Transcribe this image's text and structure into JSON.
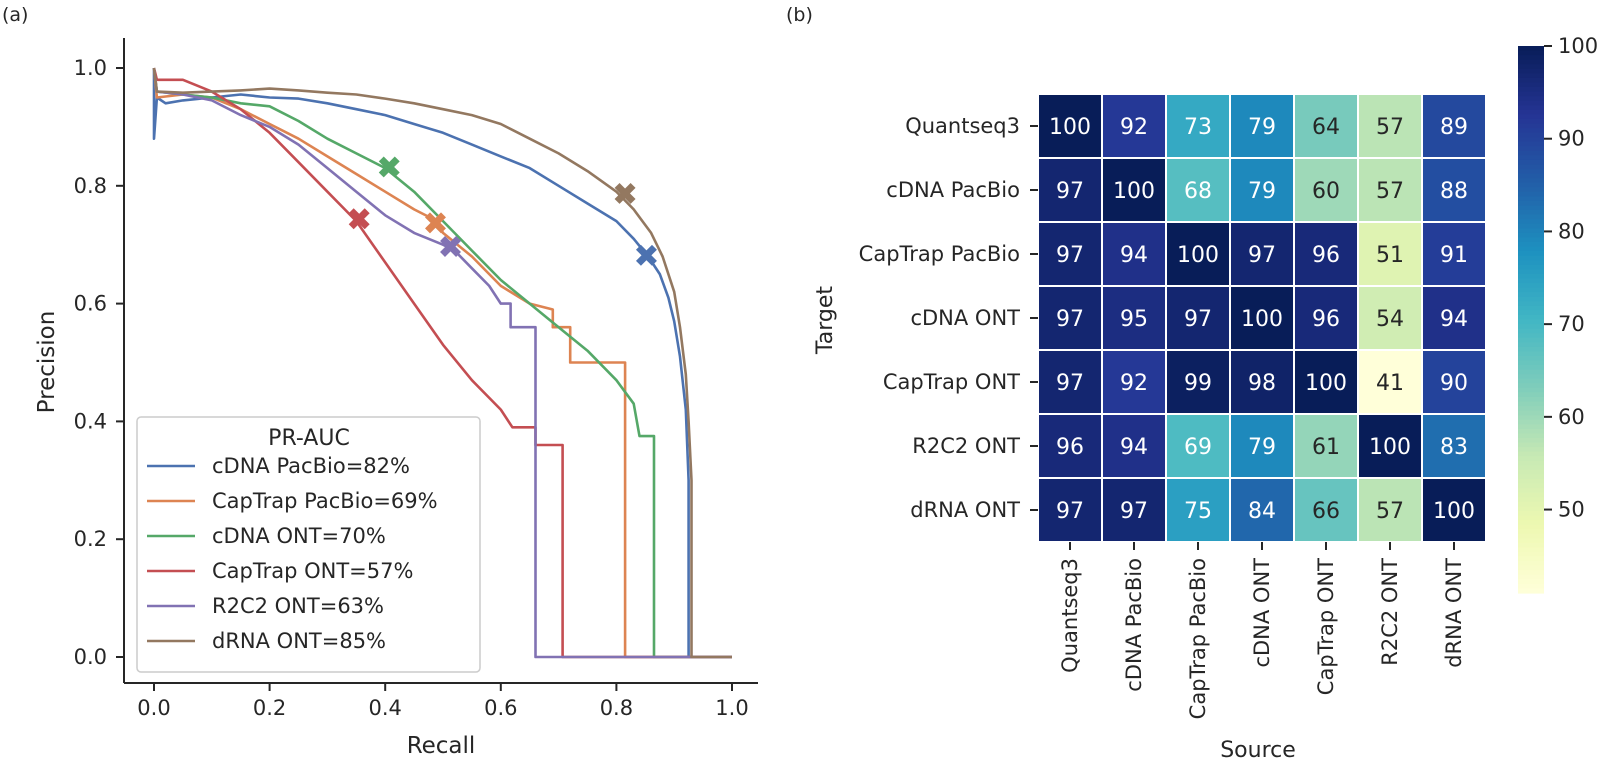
{
  "panels": {
    "a_label": "(a)",
    "b_label": "(b)"
  },
  "chart_data": [
    {
      "type": "line",
      "panel": "(a)",
      "xlabel": "Recall",
      "ylabel": "Precision",
      "xlim": [
        -0.05,
        1.05
      ],
      "ylim": [
        -0.05,
        1.05
      ],
      "xticks": [
        "0.0",
        "0.2",
        "0.4",
        "0.6",
        "0.8",
        "1.0"
      ],
      "yticks": [
        "0.0",
        "0.2",
        "0.4",
        "0.6",
        "0.8",
        "1.0"
      ],
      "legend": {
        "title": "PR-AUC",
        "placement": "lower-left"
      },
      "grid": false,
      "series": [
        {
          "name": "cDNA PacBio=82%",
          "color": "#4c72b0",
          "x": [
            0.0,
            0.0,
            0.005,
            0.02,
            0.05,
            0.1,
            0.15,
            0.2,
            0.25,
            0.3,
            0.35,
            0.4,
            0.45,
            0.5,
            0.55,
            0.6,
            0.65,
            0.7,
            0.75,
            0.8,
            0.83,
            0.855,
            0.875,
            0.89,
            0.9,
            0.91,
            0.92,
            0.925,
            0.925,
            1.0
          ],
          "y": [
            1.0,
            0.88,
            0.95,
            0.94,
            0.945,
            0.95,
            0.955,
            0.95,
            0.948,
            0.94,
            0.93,
            0.92,
            0.905,
            0.89,
            0.87,
            0.85,
            0.83,
            0.8,
            0.77,
            0.74,
            0.71,
            0.68,
            0.65,
            0.61,
            0.57,
            0.51,
            0.42,
            0.3,
            0.0,
            0.0
          ],
          "marker": {
            "x": 0.852,
            "y": 0.682
          }
        },
        {
          "name": "CapTrap PacBio=69%",
          "color": "#dd8452",
          "x": [
            0.0,
            0.005,
            0.05,
            0.1,
            0.15,
            0.2,
            0.25,
            0.3,
            0.35,
            0.4,
            0.45,
            0.49,
            0.5,
            0.55,
            0.6,
            0.65,
            0.69,
            0.69,
            0.72,
            0.72,
            0.77,
            0.77,
            0.815,
            0.815,
            0.815,
            1.0
          ],
          "y": [
            1.0,
            0.95,
            0.955,
            0.95,
            0.93,
            0.905,
            0.88,
            0.85,
            0.82,
            0.79,
            0.76,
            0.74,
            0.72,
            0.68,
            0.63,
            0.6,
            0.59,
            0.56,
            0.56,
            0.5,
            0.5,
            0.5,
            0.5,
            0.5,
            0.0,
            0.0
          ],
          "marker": {
            "x": 0.487,
            "y": 0.737
          }
        },
        {
          "name": "cDNA ONT=70%",
          "color": "#55a868",
          "x": [
            0.0,
            0.005,
            0.05,
            0.1,
            0.15,
            0.2,
            0.25,
            0.3,
            0.35,
            0.4,
            0.45,
            0.5,
            0.55,
            0.6,
            0.65,
            0.7,
            0.75,
            0.8,
            0.83,
            0.84,
            0.865,
            0.865,
            1.0
          ],
          "y": [
            1.0,
            0.96,
            0.955,
            0.95,
            0.94,
            0.935,
            0.91,
            0.88,
            0.855,
            0.83,
            0.79,
            0.74,
            0.69,
            0.64,
            0.6,
            0.56,
            0.52,
            0.47,
            0.43,
            0.375,
            0.375,
            0.0,
            0.0
          ],
          "marker": {
            "x": 0.407,
            "y": 0.832
          }
        },
        {
          "name": "CapTrap ONT=57%",
          "color": "#c44e52",
          "x": [
            0.0,
            0.005,
            0.05,
            0.1,
            0.15,
            0.2,
            0.25,
            0.3,
            0.35,
            0.4,
            0.45,
            0.5,
            0.55,
            0.6,
            0.62,
            0.63,
            0.66,
            0.66,
            0.69,
            0.69,
            0.707,
            0.707,
            1.0
          ],
          "y": [
            1.0,
            0.98,
            0.98,
            0.96,
            0.93,
            0.89,
            0.84,
            0.79,
            0.74,
            0.67,
            0.6,
            0.53,
            0.47,
            0.42,
            0.39,
            0.39,
            0.39,
            0.36,
            0.36,
            0.36,
            0.36,
            0.0,
            0.0
          ],
          "marker": {
            "x": 0.355,
            "y": 0.744
          }
        },
        {
          "name": "R2C2 ONT=63%",
          "color": "#8172b3",
          "x": [
            0.0,
            0.005,
            0.05,
            0.1,
            0.15,
            0.2,
            0.25,
            0.3,
            0.35,
            0.4,
            0.45,
            0.5,
            0.52,
            0.55,
            0.58,
            0.6,
            0.6,
            0.617,
            0.617,
            0.66,
            0.66,
            1.0
          ],
          "y": [
            1.0,
            0.96,
            0.955,
            0.945,
            0.92,
            0.9,
            0.87,
            0.83,
            0.79,
            0.75,
            0.72,
            0.7,
            0.69,
            0.66,
            0.63,
            0.6,
            0.6,
            0.6,
            0.56,
            0.56,
            0.0,
            0.0
          ],
          "marker": {
            "x": 0.513,
            "y": 0.697
          }
        },
        {
          "name": "dRNA ONT=85%",
          "color": "#937860",
          "x": [
            0.0,
            0.005,
            0.05,
            0.1,
            0.15,
            0.2,
            0.25,
            0.3,
            0.35,
            0.4,
            0.45,
            0.5,
            0.55,
            0.6,
            0.65,
            0.7,
            0.75,
            0.8,
            0.83,
            0.86,
            0.88,
            0.9,
            0.91,
            0.92,
            0.925,
            0.93,
            0.93,
            1.0
          ],
          "y": [
            1.0,
            0.96,
            0.958,
            0.96,
            0.962,
            0.965,
            0.962,
            0.958,
            0.955,
            0.948,
            0.94,
            0.93,
            0.92,
            0.905,
            0.88,
            0.855,
            0.825,
            0.79,
            0.76,
            0.72,
            0.68,
            0.62,
            0.56,
            0.48,
            0.4,
            0.3,
            0.0,
            0.0
          ],
          "marker": {
            "x": 0.815,
            "y": 0.787
          }
        }
      ]
    },
    {
      "type": "heatmap",
      "panel": "(b)",
      "xlabel": "Source",
      "ylabel": "Target",
      "x_categories": [
        "Quantseq3",
        "cDNA PacBio",
        "CapTrap PacBio",
        "cDNA ONT",
        "CapTrap ONT",
        "R2C2 ONT",
        "dRNA ONT"
      ],
      "y_categories": [
        "Quantseq3",
        "cDNA PacBio",
        "CapTrap PacBio",
        "cDNA ONT",
        "CapTrap ONT",
        "R2C2 ONT",
        "dRNA ONT"
      ],
      "values": [
        [
          100,
          92,
          73,
          79,
          64,
          57,
          89
        ],
        [
          97,
          100,
          68,
          79,
          60,
          57,
          88
        ],
        [
          97,
          94,
          100,
          97,
          96,
          51,
          91
        ],
        [
          97,
          95,
          97,
          100,
          96,
          54,
          94
        ],
        [
          97,
          92,
          99,
          98,
          100,
          41,
          90
        ],
        [
          96,
          94,
          69,
          79,
          61,
          100,
          83
        ],
        [
          97,
          97,
          75,
          84,
          66,
          57,
          100
        ]
      ],
      "colormap": "YlGnBu",
      "colorbar": {
        "range": [
          41,
          100
        ],
        "ticks": [
          "50",
          "60",
          "70",
          "80",
          "90",
          "100"
        ]
      }
    }
  ]
}
